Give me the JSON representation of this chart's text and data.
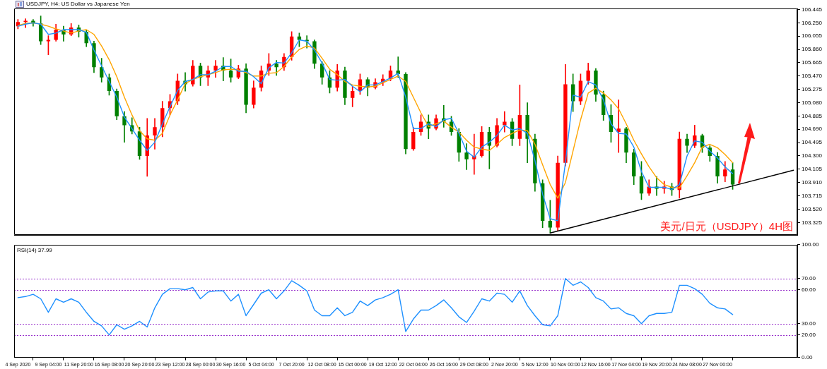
{
  "chart_data": [
    {
      "type": "candlestick",
      "title": "USDJPY, H4: US Dollar vs Japanese Yen",
      "categories": [
        null,
        null,
        null,
        null,
        null,
        null,
        null,
        null,
        null,
        null,
        null,
        null,
        null,
        null,
        null,
        null,
        null,
        null,
        null,
        null,
        null,
        null,
        null,
        null,
        null,
        null,
        null,
        null,
        null,
        null,
        null,
        null,
        null,
        null,
        null,
        null,
        null,
        null,
        null,
        null,
        null,
        null,
        null,
        null,
        null,
        null,
        null,
        null,
        null,
        null,
        null,
        null,
        null,
        null,
        null,
        null,
        null,
        null,
        null,
        null,
        null,
        null,
        null,
        null,
        null,
        null,
        null,
        null,
        null,
        null,
        null,
        null,
        null,
        null,
        null,
        null,
        null,
        null,
        null,
        null,
        null,
        null,
        null,
        null,
        null,
        null,
        null,
        null,
        null,
        null,
        null,
        null,
        null,
        null,
        null,
        null,
        null,
        null,
        null,
        null,
        null,
        null,
        null
      ],
      "ohlc": [
        [
          106.2,
          106.3,
          106.16,
          106.26
        ],
        [
          106.26,
          106.31,
          106.18,
          106.28
        ],
        [
          106.28,
          106.3,
          106.2,
          106.24
        ],
        [
          106.24,
          106.35,
          105.93,
          105.98
        ],
        [
          105.98,
          106.06,
          105.78,
          106.0
        ],
        [
          106.0,
          106.23,
          105.98,
          106.15
        ],
        [
          106.15,
          106.2,
          105.98,
          106.08
        ],
        [
          106.08,
          106.24,
          106.06,
          106.18
        ],
        [
          106.18,
          106.22,
          106.04,
          106.12
        ],
        [
          106.12,
          106.14,
          105.9,
          105.95
        ],
        [
          105.95,
          105.98,
          105.52,
          105.6
        ],
        [
          105.6,
          105.73,
          105.38,
          105.45
        ],
        [
          105.45,
          105.5,
          105.19,
          105.25
        ],
        [
          105.25,
          105.28,
          104.83,
          104.88
        ],
        [
          104.88,
          104.95,
          104.5,
          104.75
        ],
        [
          104.75,
          104.86,
          104.62,
          104.66
        ],
        [
          104.66,
          104.72,
          104.25,
          104.3
        ],
        [
          104.3,
          104.85,
          104.0,
          104.6
        ],
        [
          104.6,
          104.85,
          104.4,
          104.72
        ],
        [
          104.72,
          105.1,
          104.58,
          105.0
        ],
        [
          105.0,
          105.2,
          104.9,
          105.1
        ],
        [
          105.1,
          105.5,
          105.05,
          105.4
        ],
        [
          105.4,
          105.52,
          105.25,
          105.35
        ],
        [
          105.35,
          105.7,
          105.32,
          105.62
        ],
        [
          105.62,
          105.66,
          105.33,
          105.45
        ],
        [
          105.45,
          105.62,
          105.33,
          105.55
        ],
        [
          105.55,
          105.7,
          105.45,
          105.62
        ],
        [
          105.62,
          105.74,
          105.4,
          105.55
        ],
        [
          105.55,
          105.72,
          105.38,
          105.45
        ],
        [
          105.45,
          105.63,
          105.43,
          105.58
        ],
        [
          105.58,
          105.65,
          104.93,
          105.05
        ],
        [
          105.05,
          105.4,
          105.0,
          105.3
        ],
        [
          105.3,
          105.62,
          105.25,
          105.55
        ],
        [
          105.55,
          105.8,
          105.48,
          105.65
        ],
        [
          105.65,
          105.7,
          105.48,
          105.6
        ],
        [
          105.6,
          105.8,
          105.55,
          105.75
        ],
        [
          105.75,
          106.12,
          105.7,
          106.05
        ],
        [
          106.05,
          106.1,
          105.9,
          106.0
        ],
        [
          106.0,
          106.06,
          105.88,
          105.98
        ],
        [
          105.98,
          106.0,
          105.58,
          105.65
        ],
        [
          105.65,
          105.68,
          105.35,
          105.45
        ],
        [
          105.45,
          105.55,
          105.22,
          105.3
        ],
        [
          105.3,
          105.64,
          105.25,
          105.55
        ],
        [
          105.55,
          105.6,
          105.05,
          105.15
        ],
        [
          105.15,
          105.32,
          105.02,
          105.25
        ],
        [
          105.25,
          105.5,
          105.2,
          105.42
        ],
        [
          105.42,
          105.45,
          105.18,
          105.3
        ],
        [
          105.3,
          105.43,
          105.28,
          105.38
        ],
        [
          105.38,
          105.49,
          105.33,
          105.43
        ],
        [
          105.43,
          105.62,
          105.4,
          105.55
        ],
        [
          105.55,
          105.75,
          105.45,
          105.5
        ],
        [
          105.5,
          105.52,
          104.33,
          104.4
        ],
        [
          104.4,
          104.72,
          104.38,
          104.65
        ],
        [
          104.65,
          104.9,
          104.6,
          104.8
        ],
        [
          104.8,
          104.9,
          104.55,
          104.7
        ],
        [
          104.7,
          104.9,
          104.68,
          104.85
        ],
        [
          104.85,
          105.04,
          104.72,
          104.8
        ],
        [
          104.8,
          104.88,
          104.6,
          104.65
        ],
        [
          104.65,
          104.7,
          104.22,
          104.35
        ],
        [
          104.35,
          104.48,
          104.1,
          104.25
        ],
        [
          104.25,
          104.62,
          104.03,
          104.3
        ],
        [
          104.3,
          104.73,
          104.28,
          104.65
        ],
        [
          104.65,
          104.72,
          104.11,
          104.45
        ],
        [
          104.45,
          104.85,
          104.43,
          104.75
        ],
        [
          104.75,
          104.95,
          104.65,
          104.8
        ],
        [
          104.8,
          104.85,
          104.45,
          104.55
        ],
        [
          104.55,
          105.34,
          104.45,
          104.9
        ],
        [
          104.9,
          105.08,
          104.2,
          104.55
        ],
        [
          104.55,
          104.62,
          103.78,
          103.9
        ],
        [
          103.9,
          103.95,
          103.25,
          103.35
        ],
        [
          103.35,
          103.65,
          103.17,
          103.25
        ],
        [
          103.25,
          104.3,
          103.2,
          104.2
        ],
        [
          104.2,
          105.64,
          104.15,
          105.35
        ],
        [
          105.35,
          105.5,
          104.95,
          105.1
        ],
        [
          105.1,
          105.5,
          105.05,
          105.4
        ],
        [
          105.4,
          105.66,
          105.35,
          105.55
        ],
        [
          105.55,
          105.58,
          105.1,
          105.2
        ],
        [
          105.2,
          105.25,
          104.82,
          104.9
        ],
        [
          104.9,
          105.05,
          104.5,
          104.65
        ],
        [
          104.65,
          105.12,
          104.35,
          104.7
        ],
        [
          104.7,
          104.72,
          104.2,
          104.35
        ],
        [
          104.35,
          104.4,
          103.88,
          104.0
        ],
        [
          104.0,
          104.22,
          103.66,
          103.75
        ],
        [
          103.75,
          103.95,
          103.72,
          103.85
        ],
        [
          103.85,
          104.0,
          103.72,
          103.82
        ],
        [
          103.82,
          103.93,
          103.75,
          103.85
        ],
        [
          103.85,
          103.9,
          103.72,
          103.8
        ],
        [
          103.8,
          104.65,
          103.68,
          104.55
        ],
        [
          104.55,
          104.62,
          104.35,
          104.45
        ],
        [
          104.45,
          104.75,
          104.42,
          104.6
        ],
        [
          104.6,
          104.62,
          104.35,
          104.42
        ],
        [
          104.42,
          104.45,
          104.22,
          104.3
        ],
        [
          104.3,
          104.35,
          103.9,
          104.0
        ],
        [
          104.0,
          104.22,
          103.92,
          104.1
        ],
        [
          104.1,
          104.2,
          103.81,
          103.88
        ],
        null,
        null,
        null,
        null,
        null,
        null,
        null,
        null
      ],
      "colors": [
        "#ff0000",
        "#ff0000",
        "#008000",
        "#008000",
        "#ff0000",
        "#ff0000",
        "#008000",
        "#ff0000",
        "#008000",
        "#008000",
        "#008000",
        "#008000",
        "#008000",
        "#008000",
        "#008000",
        "#008000",
        "#008000",
        "#ff0000",
        "#ff0000",
        "#ff0000",
        "#ff0000",
        "#ff0000",
        "#008000",
        "#ff0000",
        "#008000",
        "#ff0000",
        "#ff0000",
        "#008000",
        "#008000",
        "#ff0000",
        "#008000",
        "#ff0000",
        "#ff0000",
        "#ff0000",
        "#008000",
        "#ff0000",
        "#ff0000",
        "#008000",
        "#008000",
        "#008000",
        "#008000",
        "#008000",
        "#ff0000",
        "#008000",
        "#ff0000",
        "#ff0000",
        "#008000",
        "#ff0000",
        "#ff0000",
        "#ff0000",
        "#008000",
        "#008000",
        "#ff0000",
        "#ff0000",
        "#008000",
        "#ff0000",
        "#008000",
        "#008000",
        "#008000",
        "#008000",
        "#ff0000",
        "#ff0000",
        "#008000",
        "#ff0000",
        "#ff0000",
        "#008000",
        "#ff0000",
        "#008000",
        "#008000",
        "#008000",
        "#008000",
        "#ff0000",
        "#ff0000",
        "#008000",
        "#ff0000",
        "#ff0000",
        "#008000",
        "#008000",
        "#008000",
        "#ff0000",
        "#008000",
        "#008000",
        "#008000",
        "#ff0000",
        "#008000",
        "#ff0000",
        "#008000",
        "#ff0000",
        "#008000",
        "#ff0000",
        "#008000",
        "#008000",
        "#008000",
        "#ff0000",
        "#008000",
        null,
        null,
        null,
        null,
        null,
        null,
        null,
        null
      ],
      "series": [
        {
          "type": "line",
          "color": "#1e90ff",
          "values": [
            106.2,
            106.23,
            106.25,
            106.23,
            106.08,
            106.1,
            106.15,
            106.15,
            106.15,
            106.11,
            105.85,
            105.62,
            105.39,
            105.16,
            104.87,
            104.7,
            104.53,
            104.38,
            104.5,
            104.77,
            105.02,
            105.26,
            105.39,
            105.42,
            105.49,
            105.49,
            105.54,
            105.61,
            105.61,
            105.54,
            105.54,
            105.46,
            105.36,
            105.59,
            105.67,
            105.66,
            105.81,
            106.0,
            105.98,
            105.85,
            105.66,
            105.42,
            105.41,
            105.42,
            105.32,
            105.24,
            105.34,
            105.34,
            105.39,
            105.44,
            105.51,
            105.16,
            104.7,
            104.7,
            104.77,
            104.73,
            104.83,
            104.85,
            104.63,
            104.37,
            104.28,
            104.43,
            104.5,
            104.6,
            104.75,
            104.68,
            104.7,
            104.63,
            104.23,
            103.74,
            103.38,
            103.35,
            104.2,
            105.19,
            105.16,
            105.39,
            105.34,
            105.12,
            104.77,
            104.63,
            104.62,
            104.43,
            104.07,
            103.84,
            103.84,
            103.84,
            103.81,
            103.88,
            104.3,
            104.52,
            104.5,
            104.37,
            104.27,
            104.14,
            104.04,
            null,
            null,
            null,
            null,
            null,
            null,
            null,
            null
          ]
        },
        {
          "type": "line",
          "color": "#ffa500",
          "values": [
            106.21,
            106.24,
            106.25,
            106.23,
            106.2,
            106.16,
            106.13,
            106.1,
            106.13,
            106.15,
            106.08,
            105.91,
            105.71,
            105.46,
            105.16,
            104.9,
            104.67,
            104.55,
            104.53,
            104.63,
            104.9,
            105.12,
            105.36,
            105.42,
            105.46,
            105.49,
            105.52,
            105.56,
            105.57,
            105.56,
            105.52,
            105.47,
            105.47,
            105.51,
            105.52,
            105.61,
            105.75,
            105.86,
            105.91,
            105.88,
            105.73,
            105.57,
            105.49,
            105.39,
            105.34,
            105.32,
            105.31,
            105.32,
            105.37,
            105.42,
            105.47,
            105.39,
            105.16,
            104.93,
            104.73,
            104.77,
            104.81,
            104.72,
            104.65,
            104.53,
            104.43,
            104.4,
            104.38,
            104.47,
            104.57,
            104.63,
            104.68,
            104.67,
            104.47,
            104.17,
            103.88,
            103.68,
            103.91,
            104.37,
            104.83,
            105.22,
            105.29,
            105.22,
            105.12,
            104.99,
            104.77,
            104.53,
            104.33,
            104.14,
            103.98,
            103.88,
            103.84,
            103.83,
            104.01,
            104.2,
            104.43,
            104.47,
            104.42,
            104.32,
            104.2,
            null,
            null,
            null,
            null,
            null,
            null,
            null,
            null
          ]
        },
        {
          "type": "line",
          "color": "#000000",
          "values": [
            null,
            null,
            null,
            null,
            null,
            null,
            null,
            null,
            null,
            null,
            null,
            null,
            null,
            null,
            null,
            null,
            null,
            null,
            null,
            null,
            null,
            null,
            null,
            null,
            null,
            null,
            null,
            null,
            null,
            null,
            null,
            null,
            null,
            null,
            null,
            null,
            null,
            null,
            null,
            null,
            null,
            null,
            null,
            null,
            null,
            null,
            null,
            null,
            null,
            null,
            null,
            null,
            null,
            null,
            null,
            null,
            null,
            null,
            null,
            null,
            null,
            null,
            null,
            null,
            null,
            null,
            null,
            null,
            null,
            null,
            103.17,
            null,
            null,
            null,
            null,
            null,
            null,
            null,
            null,
            null,
            null,
            null,
            null,
            null,
            null,
            null,
            null,
            null,
            null,
            null,
            null,
            null,
            null,
            null,
            null,
            null,
            null,
            null,
            null,
            null,
            null,
            null,
            104.09
          ]
        }
      ],
      "ylim": [
        103.14,
        106.46
      ],
      "yticks": [
        103.325,
        {
          "value": 103.52,
          "label": "103.520"
        },
        103.715,
        {
          "value": 103.91,
          "label": "103.910"
        },
        104.105,
        {
          "value": 104.3,
          "label": "104.300"
        },
        104.495,
        {
          "value": 104.69,
          "label": "104.690"
        },
        104.885,
        {
          "value": 105.08,
          "label": "105.080"
        },
        105.275,
        {
          "value": 105.47,
          "label": "105.470"
        },
        105.665,
        {
          "value": 105.86,
          "label": "105.860"
        },
        106.055,
        {
          "value": 106.25,
          "label": "106.250"
        },
        106.445
      ],
      "annotations": [
        "美元/日元（USDJPY）4H图"
      ]
    },
    {
      "type": "line",
      "title": "RSI(14) 37.99",
      "categories": [
        "4 Sep 2020",
        null,
        null,
        null,
        "9 Sep 04:00",
        null,
        null,
        null,
        "11 Sep 20:00",
        null,
        null,
        null,
        "16 Sep 08:00",
        null,
        null,
        null,
        "20 Sep 20:00",
        null,
        null,
        null,
        "23 Sep 12:00",
        null,
        null,
        null,
        "28 Sep 00:00",
        null,
        null,
        null,
        "30 Sep 16:00",
        null,
        null,
        null,
        "5 Oct 04:00",
        null,
        null,
        null,
        "7 Oct 20:00",
        null,
        null,
        null,
        "12 Oct 08:00",
        null,
        null,
        null,
        "15 Oct 00:00",
        null,
        null,
        null,
        "19 Oct 12:00",
        null,
        null,
        null,
        "22 Oct 04:00",
        null,
        null,
        null,
        "26 Oct 16:00",
        null,
        null,
        null,
        "29 Oct 08:00",
        null,
        null,
        null,
        "2 Nov 20:00",
        null,
        null,
        null,
        "5 Nov 12:00",
        null,
        null,
        null,
        "10 Nov 00:00",
        null,
        null,
        null,
        "12 Nov 16:00",
        null,
        null,
        null,
        "17 Nov 04:00",
        null,
        null,
        null,
        "19 Nov 20:00",
        null,
        null,
        null,
        "24 Nov 08:00",
        null,
        null,
        null,
        "27 Nov 00:00",
        null,
        null,
        null,
        null,
        null,
        null,
        null,
        null,
        null,
        null
      ],
      "series": [
        {
          "color": "#1e90ff",
          "values": [
            53,
            54,
            56,
            52,
            40,
            52,
            49,
            52,
            49,
            40,
            32,
            28,
            20,
            29,
            25,
            28,
            32,
            27,
            44,
            56,
            61,
            61,
            60,
            62,
            52,
            58,
            59,
            59,
            50,
            56,
            37,
            47,
            57,
            60,
            52,
            59,
            68,
            64,
            59,
            42,
            37,
            37,
            44,
            37,
            40,
            50,
            46,
            51,
            53,
            56,
            60,
            23,
            34,
            42,
            42,
            46,
            51,
            44,
            36,
            31,
            41,
            52,
            50,
            57,
            56,
            49,
            59,
            46,
            37,
            29,
            28,
            37,
            70,
            64,
            67,
            62,
            53,
            50,
            43,
            44,
            39,
            37,
            30,
            37,
            39,
            39,
            40,
            64,
            64,
            61,
            56,
            48,
            44,
            43,
            38,
            null,
            null,
            null,
            null,
            null,
            null,
            null,
            null
          ]
        }
      ],
      "ylim": [
        0,
        100
      ],
      "yticks": [
        {
          "value": 0,
          "label": "0.00"
        },
        {
          "value": 20,
          "label": "20.00"
        },
        {
          "value": 30,
          "label": "30.00"
        },
        {
          "value": 60,
          "label": "60.00"
        },
        {
          "value": 70,
          "label": "70.00"
        },
        {
          "value": 100,
          "label": "100.00"
        }
      ],
      "ref_lines": [
        {
          "axis": "y",
          "value": 70,
          "color": "#9932cc",
          "line_style": "dotted"
        },
        {
          "axis": "y",
          "value": 60,
          "color": "#9932cc",
          "line_style": "dotted"
        },
        {
          "axis": "y",
          "value": 30,
          "color": "#9932cc",
          "line_style": "dotted"
        },
        {
          "axis": "y",
          "value": 20,
          "color": "#9932cc",
          "line_style": "dotted"
        }
      ]
    }
  ]
}
